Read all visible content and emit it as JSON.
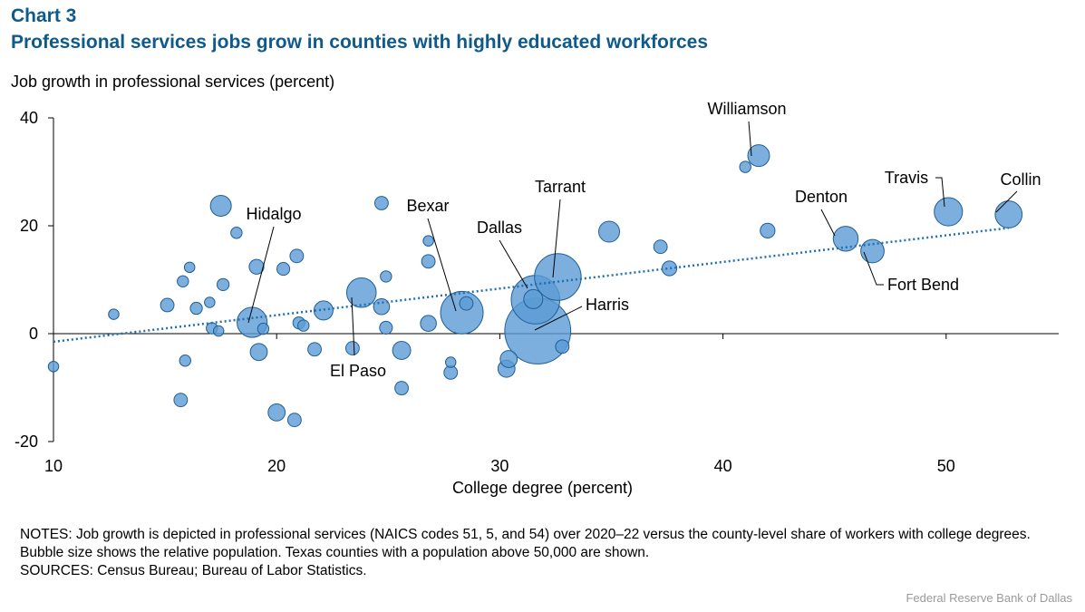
{
  "header": {
    "chart_number": "Chart 3",
    "title": "Professional services jobs grow in counties with highly educated workforces"
  },
  "footer": {
    "notes": "NOTES: Job growth is depicted in professional services (NAICS codes 51, 5, and 54) over 2020–22 versus the county-level share of workers with college degrees. Bubble size shows the relative population. Texas counties with a population above 50,000 are shown.",
    "sources": "SOURCES: Census Bureau; Bureau of Labor Statistics.",
    "credit": "Federal Reserve Bank of Dallas"
  },
  "colors": {
    "bubble_fill": "#5b9bd5",
    "bubble_stroke": "#1f5f96",
    "trend": "#1f6fb2",
    "title": "#0f5a8c"
  },
  "chart_data": {
    "type": "scatter",
    "variant": "bubble",
    "xlabel": "College degree (percent)",
    "ylabel": "Job growth in professional services (percent)",
    "xlim": [
      10,
      55
    ],
    "ylim": [
      -20,
      40
    ],
    "xticks": [
      10,
      20,
      30,
      40,
      50
    ],
    "yticks": [
      -20,
      0,
      20,
      40
    ],
    "grid": false,
    "trendline": {
      "style": "dotted",
      "x": [
        10,
        52.8
      ],
      "y": [
        -1.5,
        19.6
      ]
    },
    "points": [
      {
        "x": 10,
        "y": -6.1,
        "size": 0.3
      },
      {
        "x": 12.7,
        "y": 3.6,
        "size": 0.3
      },
      {
        "x": 15.1,
        "y": 5.3,
        "size": 0.5
      },
      {
        "x": 15.7,
        "y": -12.3,
        "size": 0.5
      },
      {
        "x": 15.8,
        "y": 9.7,
        "size": 0.35
      },
      {
        "x": 15.9,
        "y": -5.0,
        "size": 0.35
      },
      {
        "x": 16.1,
        "y": 12.3,
        "size": 0.3
      },
      {
        "x": 16.4,
        "y": 4.7,
        "size": 0.4
      },
      {
        "x": 17.0,
        "y": 5.8,
        "size": 0.3
      },
      {
        "x": 17.1,
        "y": 1.0,
        "size": 0.35
      },
      {
        "x": 17.4,
        "y": 0.5,
        "size": 0.3
      },
      {
        "x": 17.6,
        "y": 9.1,
        "size": 0.4
      },
      {
        "x": 17.5,
        "y": 23.7,
        "size": 1.2
      },
      {
        "x": 18.2,
        "y": 18.7,
        "size": 0.35
      },
      {
        "x": 18.9,
        "y": 2.1,
        "size": 2.5,
        "label": "Hidalgo"
      },
      {
        "x": 19.1,
        "y": 12.4,
        "size": 0.6
      },
      {
        "x": 19.2,
        "y": -3.4,
        "size": 0.8
      },
      {
        "x": 19.4,
        "y": 0.9,
        "size": 0.35
      },
      {
        "x": 20.0,
        "y": -14.6,
        "size": 0.8
      },
      {
        "x": 20.3,
        "y": 12.0,
        "size": 0.45
      },
      {
        "x": 20.8,
        "y": -16.0,
        "size": 0.5
      },
      {
        "x": 20.9,
        "y": 14.4,
        "size": 0.5
      },
      {
        "x": 21.0,
        "y": 2.0,
        "size": 0.4
      },
      {
        "x": 21.2,
        "y": 1.5,
        "size": 0.35
      },
      {
        "x": 21.7,
        "y": -2.9,
        "size": 0.5
      },
      {
        "x": 22.1,
        "y": 4.3,
        "size": 1.0
      },
      {
        "x": 23.4,
        "y": -2.7,
        "size": 0.5
      },
      {
        "x": 23.8,
        "y": 7.6,
        "size": 2.4,
        "label": "El Paso"
      },
      {
        "x": 24.7,
        "y": 5.0,
        "size": 0.7
      },
      {
        "x": 24.7,
        "y": 24.2,
        "size": 0.5
      },
      {
        "x": 24.9,
        "y": 10.6,
        "size": 0.35
      },
      {
        "x": 24.9,
        "y": 1.1,
        "size": 0.45
      },
      {
        "x": 25.6,
        "y": -3.1,
        "size": 0.9
      },
      {
        "x": 25.6,
        "y": -10.1,
        "size": 0.5
      },
      {
        "x": 26.8,
        "y": 13.4,
        "size": 0.5
      },
      {
        "x": 26.8,
        "y": 17.2,
        "size": 0.3
      },
      {
        "x": 26.8,
        "y": 1.9,
        "size": 0.7
      },
      {
        "x": 27.8,
        "y": -7.2,
        "size": 0.5
      },
      {
        "x": 27.8,
        "y": -5.3,
        "size": 0.3
      },
      {
        "x": 28.3,
        "y": 3.9,
        "size": 5.0,
        "label": "Bexar"
      },
      {
        "x": 28.5,
        "y": 5.6,
        "size": 0.5
      },
      {
        "x": 30.3,
        "y": -6.5,
        "size": 0.8
      },
      {
        "x": 30.4,
        "y": -4.7,
        "size": 0.8
      },
      {
        "x": 31.6,
        "y": 6.3,
        "size": 6.5,
        "label": "Dallas"
      },
      {
        "x": 31.5,
        "y": 6.4,
        "size": 1.0
      },
      {
        "x": 31.7,
        "y": 0.5,
        "size": 12.0,
        "label": "Harris"
      },
      {
        "x": 32.6,
        "y": 10.5,
        "size": 6.0,
        "label": "Tarrant"
      },
      {
        "x": 32.8,
        "y": -2.4,
        "size": 0.5
      },
      {
        "x": 34.9,
        "y": 18.9,
        "size": 1.2
      },
      {
        "x": 37.2,
        "y": 16.1,
        "size": 0.5
      },
      {
        "x": 37.6,
        "y": 12.1,
        "size": 0.6
      },
      {
        "x": 41.0,
        "y": 30.9,
        "size": 0.35
      },
      {
        "x": 41.6,
        "y": 33.0,
        "size": 1.3,
        "label": "Williamson"
      },
      {
        "x": 42.0,
        "y": 19.1,
        "size": 0.6
      },
      {
        "x": 45.5,
        "y": 17.6,
        "size": 1.7,
        "label": "Denton"
      },
      {
        "x": 46.7,
        "y": 15.3,
        "size": 1.5,
        "label": "Fort Bend"
      },
      {
        "x": 50.1,
        "y": 22.6,
        "size": 2.2,
        "label": "Travis"
      },
      {
        "x": 52.8,
        "y": 22.1,
        "size": 2.0,
        "label": "Collin"
      }
    ],
    "annotations": [
      {
        "text": "Hidalgo",
        "x": 18.9,
        "y": 2.1
      },
      {
        "text": "El Paso",
        "x": 23.8,
        "y": 7.6
      },
      {
        "text": "Bexar",
        "x": 28.3,
        "y": 3.9
      },
      {
        "text": "Dallas",
        "x": 31.6,
        "y": 6.3
      },
      {
        "text": "Tarrant",
        "x": 32.6,
        "y": 10.5
      },
      {
        "text": "Harris",
        "x": 31.7,
        "y": 0.5
      },
      {
        "text": "Williamson",
        "x": 41.6,
        "y": 33.0
      },
      {
        "text": "Denton",
        "x": 45.5,
        "y": 17.6
      },
      {
        "text": "Fort Bend",
        "x": 46.7,
        "y": 15.3
      },
      {
        "text": "Travis",
        "x": 50.1,
        "y": 22.6
      },
      {
        "text": "Collin",
        "x": 52.8,
        "y": 22.1
      }
    ]
  }
}
